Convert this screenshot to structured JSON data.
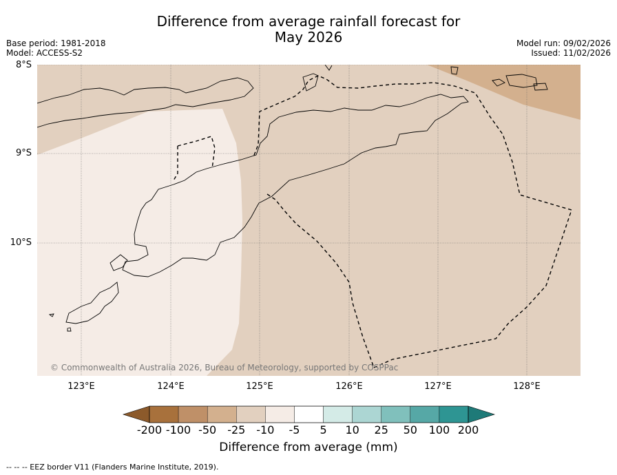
{
  "title": {
    "line1": "Difference from average rainfall forecast for",
    "line2": "May 2026"
  },
  "meta": {
    "base_period": "Base period: 1981-2018",
    "model": "Model: ACCESS-S2",
    "model_run": "Model run: 09/02/2026",
    "issued": "Issued: 11/02/2026"
  },
  "map": {
    "lat_labels": [
      "8°S",
      "9°S",
      "10°S"
    ],
    "lon_labels": [
      "123°E",
      "124°E",
      "125°E",
      "126°E",
      "127°E",
      "128°E"
    ],
    "copyright": "© Commonwealth of Australia 2026, Bureau of Meteorology, supported by COSPPac"
  },
  "colorbar": {
    "ticks": [
      "-200",
      "-100",
      "-50",
      "-25",
      "-10",
      "-5",
      "5",
      "10",
      "25",
      "50",
      "100",
      "200"
    ],
    "colors": [
      "#a8713c",
      "#bf9068",
      "#d3b08e",
      "#e2d0bf",
      "#f5ece6",
      "#ffffff",
      "#d4ebe7",
      "#acd6d3",
      "#80c0bc",
      "#56a8a6",
      "#2e9593"
    ],
    "low_extend_color": "#8c5a2b",
    "high_extend_color": "#1e7a78",
    "label": "Difference from average (mm)"
  },
  "legend": {
    "eez_text": "-- -- -- EEZ border V11 (Flanders Marine Institute, 2019)."
  }
}
